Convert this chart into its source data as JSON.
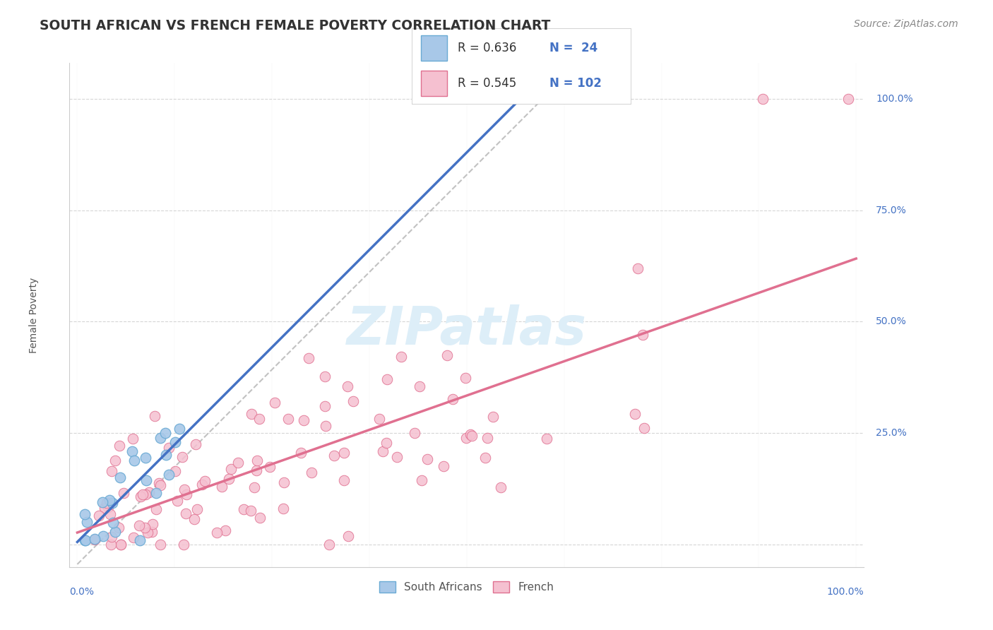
{
  "title": "SOUTH AFRICAN VS FRENCH FEMALE POVERTY CORRELATION CHART",
  "source": "Source: ZipAtlas.com",
  "ylabel": "Female Poverty",
  "sa_color": "#a8c8e8",
  "sa_color_edge": "#6aaad4",
  "sa_color_line": "#4472c4",
  "french_color": "#f5c0d0",
  "french_color_edge": "#e07090",
  "french_color_line": "#e07090",
  "dashed_color": "#bbbbbb",
  "watermark_color": "#ddeef8",
  "background_color": "#ffffff",
  "grid_color": "#cccccc",
  "title_color": "#333333",
  "axis_label_color": "#4472c4",
  "source_color": "#888888",
  "sa_R": 0.636,
  "sa_N": 24,
  "french_R": 0.545,
  "french_N": 102
}
